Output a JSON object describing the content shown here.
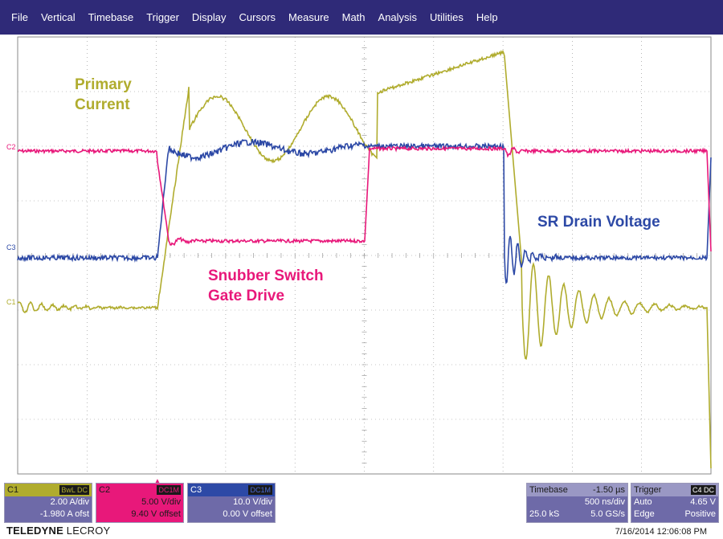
{
  "menu": [
    "File",
    "Vertical",
    "Timebase",
    "Trigger",
    "Display",
    "Cursors",
    "Measure",
    "Math",
    "Analysis",
    "Utilities",
    "Help"
  ],
  "labels": {
    "primary_current": [
      "Primary",
      "Current"
    ],
    "snubber": [
      "Snubber Switch",
      "Gate Drive"
    ],
    "sr_drain": "SR Drain Voltage"
  },
  "markers": {
    "c1": "C1",
    "c2": "C2",
    "c3": "C3"
  },
  "colors": {
    "c1": "#b0ac2e",
    "c2": "#e8187a",
    "c3": "#2d49a6",
    "menubar": "#2f2a78",
    "panel_bg": "#6e6aa8"
  },
  "channels": [
    {
      "name": "C1",
      "tags": "BwL DC",
      "vdiv": "2.00 A/div",
      "offset": "-1.980 A ofst"
    },
    {
      "name": "C2",
      "tags": "DC1M",
      "vdiv": "5.00 V/div",
      "offset": "9.40 V offset"
    },
    {
      "name": "C3",
      "tags": "DC1M",
      "vdiv": "10.0 V/div",
      "offset": "0.00 V offset"
    }
  ],
  "timebase": {
    "label": "Timebase",
    "delay": "-1.50 µs",
    "tdiv": "500 ns/div",
    "samples": "25.0 kS",
    "rate": "5.0 GS/s"
  },
  "trigger": {
    "label": "Trigger",
    "source": "C4 DC",
    "mode": "Auto",
    "level": "4.65 V",
    "type": "Edge",
    "slope": "Positive"
  },
  "brand": {
    "bold": "TELEDYNE",
    "rest": " LECROY"
  },
  "datetime": "7/16/2014 12:06:08 PM"
}
